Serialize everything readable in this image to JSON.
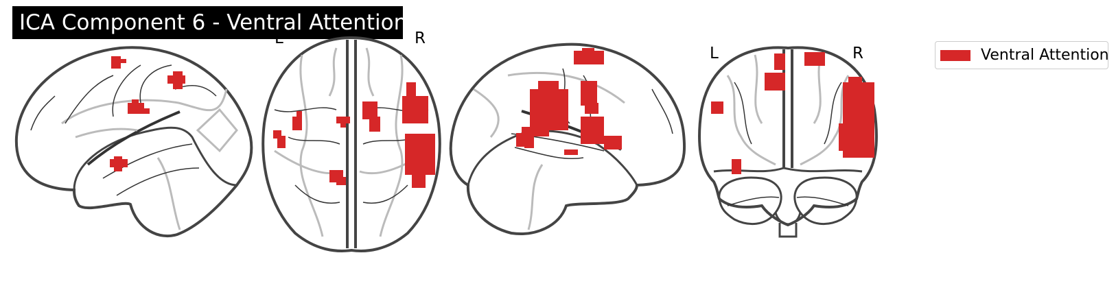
{
  "title": "ICA Component 6 - Ventral Attention",
  "orientation_labels": {
    "axial_left": "L",
    "axial_right": "R",
    "coronal_left": "L",
    "coronal_right": "R"
  },
  "legend": {
    "label": "Ventral Attention",
    "color": "#d62728"
  },
  "colors": {
    "outline": "#444444",
    "inner_line": "#333333",
    "sulci": "#bbbbbb",
    "activation": "#d62728"
  }
}
